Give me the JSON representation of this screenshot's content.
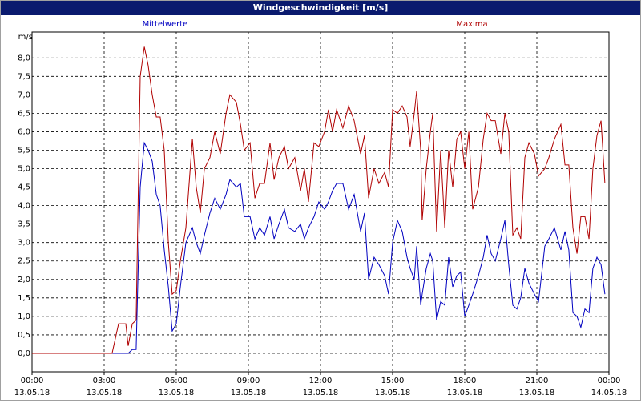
{
  "chart_data": {
    "type": "line",
    "title": "Windgeschwindigkeit [m/s]",
    "ylabel": "m/s",
    "x": [
      0,
      3.33,
      3.6,
      3.9,
      4.0,
      4.17,
      4.33,
      4.5,
      4.67,
      4.83,
      5.0,
      5.17,
      5.33,
      5.5,
      5.67,
      5.83,
      6.0,
      6.17,
      6.4,
      6.67,
      6.83,
      7.0,
      7.17,
      7.4,
      7.6,
      7.83,
      8.07,
      8.23,
      8.5,
      8.67,
      8.83,
      9.07,
      9.27,
      9.47,
      9.67,
      9.9,
      10.07,
      10.27,
      10.5,
      10.67,
      10.93,
      11.17,
      11.33,
      11.5,
      11.73,
      11.93,
      12.17,
      12.33,
      12.5,
      12.67,
      12.93,
      13.17,
      13.4,
      13.67,
      13.83,
      14.0,
      14.23,
      14.43,
      14.67,
      14.83,
      15.0,
      15.2,
      15.4,
      15.6,
      15.73,
      15.9,
      16.0,
      16.17,
      16.23,
      16.4,
      16.57,
      16.67,
      16.83,
      17.0,
      17.17,
      17.33,
      17.5,
      17.67,
      17.83,
      18.0,
      18.17,
      18.33,
      18.57,
      18.77,
      18.93,
      19.1,
      19.27,
      19.5,
      19.67,
      19.83,
      20.0,
      20.17,
      20.33,
      20.5,
      20.67,
      20.9,
      21.07,
      21.33,
      21.5,
      21.73,
      22.0,
      22.17,
      22.33,
      22.5,
      22.67,
      22.83,
      23.0,
      23.17,
      23.33,
      23.5,
      23.67,
      23.83
    ],
    "series": [
      {
        "name": "Mittelwerte",
        "color": "#0000c0",
        "values": [
          0,
          0,
          0,
          0,
          0,
          0.1,
          0.1,
          4.5,
          5.7,
          5.5,
          5.2,
          4.3,
          4.0,
          2.8,
          1.8,
          0.6,
          0.8,
          1.8,
          3.0,
          3.4,
          3.0,
          2.7,
          3.2,
          3.8,
          4.2,
          3.9,
          4.3,
          4.7,
          4.5,
          4.6,
          3.7,
          3.7,
          3.1,
          3.4,
          3.2,
          3.7,
          3.1,
          3.5,
          3.9,
          3.4,
          3.3,
          3.5,
          3.1,
          3.4,
          3.7,
          4.1,
          3.9,
          4.1,
          4.4,
          4.6,
          4.6,
          3.9,
          4.3,
          3.3,
          3.8,
          2.0,
          2.6,
          2.4,
          2.1,
          1.6,
          3.0,
          3.6,
          3.3,
          2.6,
          2.3,
          2.0,
          2.9,
          1.3,
          1.6,
          2.3,
          2.7,
          2.5,
          0.9,
          1.4,
          1.3,
          2.6,
          1.8,
          2.1,
          2.2,
          1.0,
          1.3,
          1.6,
          2.1,
          2.6,
          3.2,
          2.7,
          2.5,
          3.1,
          3.6,
          2.4,
          1.3,
          1.2,
          1.5,
          2.3,
          1.9,
          1.6,
          1.4,
          2.9,
          3.1,
          3.4,
          2.8,
          3.3,
          2.8,
          1.1,
          1.0,
          0.7,
          1.2,
          1.1,
          2.3,
          2.6,
          2.4,
          1.6
        ]
      },
      {
        "name": "Maxima",
        "color": "#b00000",
        "values": [
          0,
          0,
          0.8,
          0.8,
          0.2,
          0.8,
          0.9,
          7.5,
          8.3,
          7.8,
          7.0,
          6.4,
          6.4,
          5.5,
          3.0,
          1.6,
          1.7,
          2.5,
          3.4,
          5.8,
          4.5,
          3.8,
          5.0,
          5.3,
          6.0,
          5.4,
          6.5,
          7.0,
          6.8,
          6.2,
          5.5,
          5.7,
          4.2,
          4.6,
          4.6,
          5.7,
          4.7,
          5.3,
          5.6,
          5.0,
          5.3,
          4.4,
          5.0,
          4.1,
          5.7,
          5.6,
          6.0,
          6.6,
          6.0,
          6.6,
          6.1,
          6.7,
          6.3,
          5.4,
          5.9,
          4.2,
          5.0,
          4.6,
          4.9,
          4.5,
          6.6,
          6.5,
          6.7,
          6.4,
          5.6,
          6.5,
          7.1,
          5.5,
          3.6,
          5.0,
          6.0,
          6.5,
          3.3,
          5.5,
          3.4,
          5.5,
          4.5,
          5.8,
          6.0,
          5.0,
          6.0,
          3.9,
          4.5,
          5.8,
          6.5,
          6.3,
          6.3,
          5.4,
          6.5,
          6.0,
          3.2,
          3.4,
          3.1,
          5.3,
          5.7,
          5.4,
          4.8,
          5.0,
          5.3,
          5.8,
          6.2,
          5.1,
          5.1,
          3.4,
          2.7,
          3.7,
          3.7,
          3.1,
          5.0,
          5.9,
          6.3,
          4.6
        ]
      }
    ],
    "xlim": [
      0,
      24
    ],
    "xticks": [
      {
        "value": 0,
        "label": "00:00",
        "date": "13.05.18"
      },
      {
        "value": 3,
        "label": "03:00",
        "date": "13.05.18"
      },
      {
        "value": 6,
        "label": "06:00",
        "date": "13.05.18"
      },
      {
        "value": 9,
        "label": "09:00",
        "date": "13.05.18"
      },
      {
        "value": 12,
        "label": "12:00",
        "date": "13.05.18"
      },
      {
        "value": 15,
        "label": "15:00",
        "date": "13.05.18"
      },
      {
        "value": 18,
        "label": "18:00",
        "date": "13.05.18"
      },
      {
        "value": 21,
        "label": "21:00",
        "date": "13.05.18"
      },
      {
        "value": 24,
        "label": "00:00",
        "date": "14.05.18"
      }
    ],
    "ylim": [
      -0.5,
      8.7
    ],
    "yticks": [
      {
        "value": 0,
        "label": "0,0"
      },
      {
        "value": 0.5,
        "label": "0,5"
      },
      {
        "value": 1,
        "label": "1,0"
      },
      {
        "value": 1.5,
        "label": "1,5"
      },
      {
        "value": 2,
        "label": "2,0"
      },
      {
        "value": 2.5,
        "label": "2,5"
      },
      {
        "value": 3,
        "label": "3,0"
      },
      {
        "value": 3.5,
        "label": "3,5"
      },
      {
        "value": 4,
        "label": "4,0"
      },
      {
        "value": 4.5,
        "label": "4,5"
      },
      {
        "value": 5,
        "label": "5,0"
      },
      {
        "value": 5.5,
        "label": "5,5"
      },
      {
        "value": 6,
        "label": "6,0"
      },
      {
        "value": 6.5,
        "label": "6,5"
      },
      {
        "value": 7,
        "label": "7,0"
      },
      {
        "value": 7.5,
        "label": "7,5"
      },
      {
        "value": 8,
        "label": "8,0"
      }
    ],
    "grid": true
  }
}
